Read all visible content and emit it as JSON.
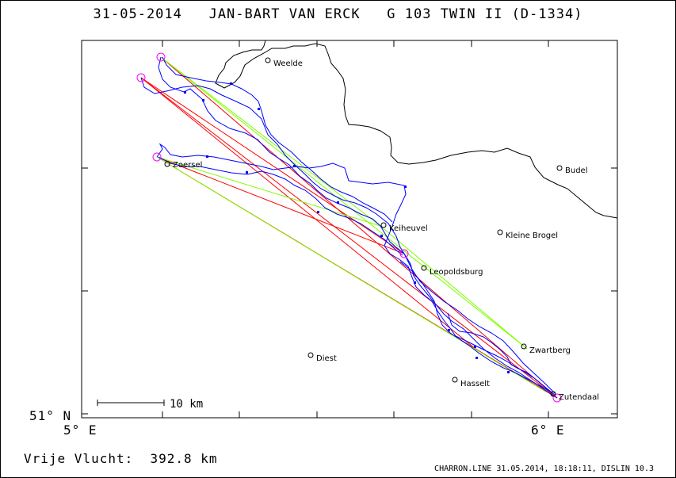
{
  "header": {
    "title": "31-05-2014   JAN-BART VAN ERCK   G 103 TWIN II (D-1334)"
  },
  "axes": {
    "lat_label": "51° N",
    "lon_left_label": "5° E",
    "lon_right_label": "6° E"
  },
  "scale_bar": {
    "label": "10 km"
  },
  "places": [
    {
      "name": "Weelde"
    },
    {
      "name": "Zoersel"
    },
    {
      "name": "Budel"
    },
    {
      "name": "Keiheuvel"
    },
    {
      "name": "Kleine Brogel"
    },
    {
      "name": "Leopoldsburg"
    },
    {
      "name": "Zwartberg"
    },
    {
      "name": "Diest"
    },
    {
      "name": "Hasselt"
    },
    {
      "name": "Zutendaal"
    }
  ],
  "footer": {
    "distance": "Vrije Vlucht:  392.8 km",
    "credit": "CHARRON.LINE 31.05.2014, 18:18:11, DISLIN 10.3"
  },
  "colors": {
    "track": "#0000ff",
    "task_red": "#ff0000",
    "task_green": "#7fff00",
    "turnpoint": "#ff00ff",
    "border": "#000000"
  }
}
